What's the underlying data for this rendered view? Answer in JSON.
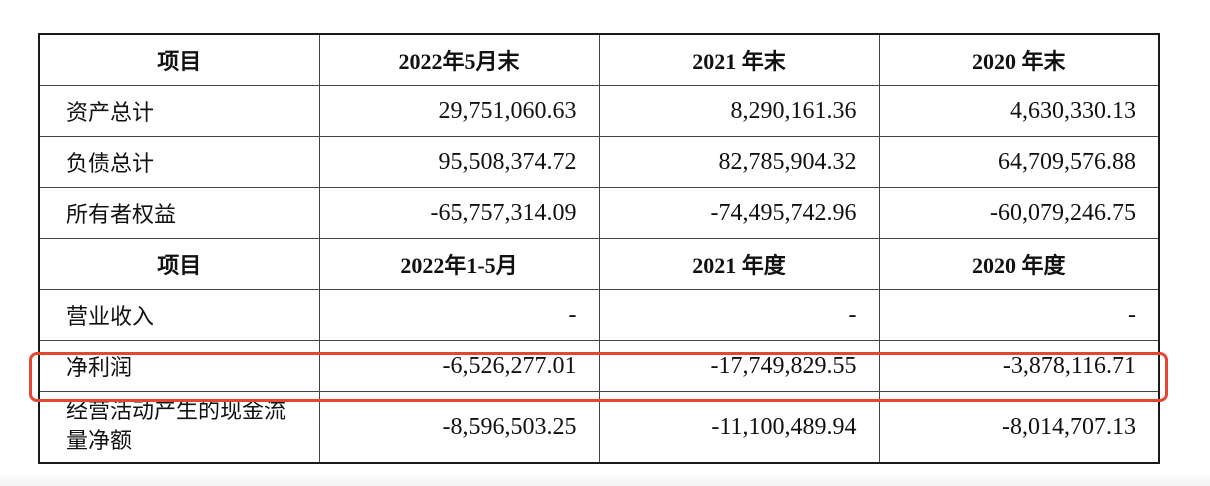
{
  "balance_header": {
    "item": "项目",
    "col1": "2022年5月末",
    "col2": "2021 年末",
    "col3": "2020 年末"
  },
  "balance_rows": [
    {
      "label": "资产总计",
      "v1": "29,751,060.63",
      "v2": "8,290,161.36",
      "v3": "4,630,330.13"
    },
    {
      "label": "负债总计",
      "v1": "95,508,374.72",
      "v2": "82,785,904.32",
      "v3": "64,709,576.88"
    },
    {
      "label": "所有者权益",
      "v1": "-65,757,314.09",
      "v2": "-74,495,742.96",
      "v3": "-60,079,246.75"
    }
  ],
  "income_header": {
    "item": "项目",
    "col1": "2022年1-5月",
    "col2": "2021 年度",
    "col3": "2020 年度"
  },
  "income_rows": [
    {
      "label": "营业收入",
      "v1": "-",
      "v2": "-",
      "v3": "-"
    },
    {
      "label": "净利润",
      "v1": "-6,526,277.01",
      "v2": "-17,749,829.55",
      "v3": "-3,878,116.71"
    },
    {
      "label": "经营活动产生的现金流量净额",
      "v1": "-8,596,503.25",
      "v2": "-11,100,489.94",
      "v3": "-8,014,707.13"
    }
  ],
  "highlight_color": "#e4472f"
}
